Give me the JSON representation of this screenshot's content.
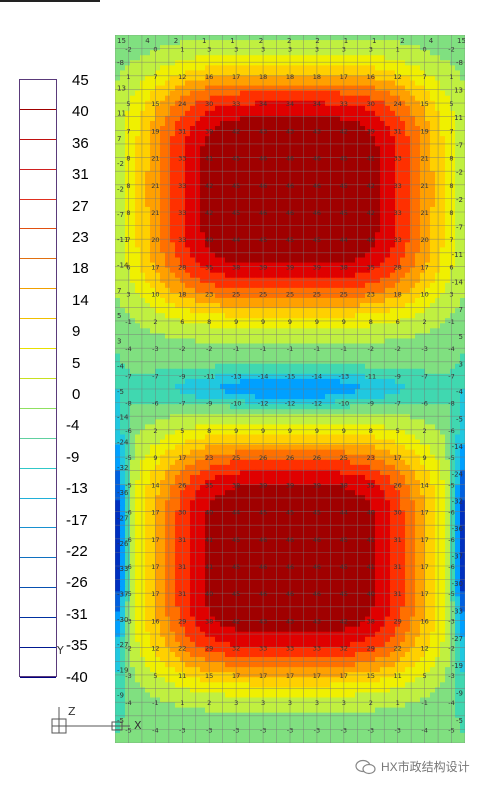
{
  "legend": {
    "labels": [
      "45",
      "40",
      "36",
      "31",
      "27",
      "23",
      "18",
      "14",
      "9",
      "5",
      "0",
      "-4",
      "-9",
      "-13",
      "-17",
      "-22",
      "-26",
      "-31",
      "-35",
      "-40"
    ],
    "colors": [
      "#ffffff",
      "#ffffff",
      "#ffffff",
      "#ffffff",
      "#ffffff",
      "#ffffff",
      "#ffffff",
      "#ffffff",
      "#ffffff",
      "#ffffff",
      "#ffffff",
      "#ffffff",
      "#ffffff",
      "#ffffff",
      "#ffffff",
      "#ffffff",
      "#ffffff",
      "#ffffff",
      "#ffffff",
      "#ffffff"
    ],
    "line_colors": [
      "#a00000",
      "#c01010",
      "#d02020",
      "#e03020",
      "#e05010",
      "#e07010",
      "#f0a000",
      "#f0c000",
      "#e8e000",
      "#c8e020",
      "#90e060",
      "#60d0a0",
      "#30c8c8",
      "#20b0d8",
      "#1890d0",
      "#1070c0",
      "#0850b0",
      "#0030a0",
      "#001890",
      "#000080"
    ]
  },
  "plot": {
    "top_labels": [
      "15",
      "4",
      "2",
      "1",
      "1",
      "2",
      "2",
      "2",
      "1",
      "1",
      "2",
      "4",
      "15"
    ],
    "left_labels": [
      "-8",
      "13",
      "11",
      "7",
      "-2",
      "-2",
      "-7",
      "-11",
      "-14",
      "7",
      "5",
      "3",
      "-4",
      "-5",
      "-14",
      "-24",
      "-32",
      "-36",
      "-27",
      "-26",
      "-33",
      "-37",
      "-30",
      "-27",
      "-19",
      "-9",
      "-5"
    ],
    "right_labels": [
      "-8",
      "13",
      "11",
      "-7",
      "-2",
      "-2",
      "-7",
      "-11",
      "-14",
      "7",
      "5",
      "3",
      "-4",
      "-5",
      "-14",
      "-24",
      "-32",
      "-36",
      "-37",
      "-30",
      "-33",
      "-27",
      "-19",
      "-9",
      "-5"
    ],
    "colormap_stops": [
      "#000080",
      "#0030c0",
      "#0060e0",
      "#00a0ff",
      "#20c8e0",
      "#40d8b0",
      "#80e080",
      "#c0f040",
      "#f0f000",
      "#ffd000",
      "#ffa000",
      "#ff7000",
      "#ff3000",
      "#e00000",
      "#a00000"
    ],
    "min": -40,
    "max": 45
  },
  "axis": {
    "z_label": "Z",
    "x_label": "X",
    "y_label": "Y"
  },
  "watermark": {
    "text": "HX市政结构设计"
  }
}
